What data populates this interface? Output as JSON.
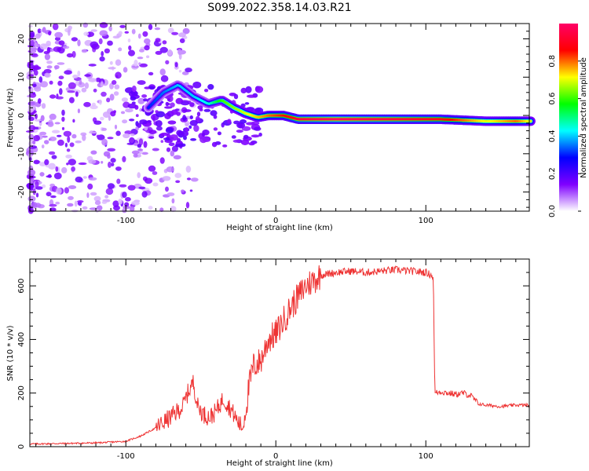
{
  "figure": {
    "title": "S099.2022.358.14.03.R21"
  },
  "chart_data": [
    {
      "type": "heatmap",
      "name": "spectrogram",
      "xlabel": "Height of straight line (km)",
      "ylabel": "Frequency (Hz)",
      "xlim": [
        -164,
        169
      ],
      "ylim": [
        -25,
        24
      ],
      "x_ticks": [
        -100,
        0,
        100
      ],
      "y_ticks": [
        -20,
        -10,
        0,
        10,
        20
      ],
      "grid": false,
      "ridge": {
        "x": [
          -85,
          -75,
          -65,
          -55,
          -45,
          -36,
          -28,
          -20,
          -12,
          -5,
          5,
          15,
          40,
          80,
          110,
          140,
          160,
          169
        ],
        "y": [
          2,
          6,
          8,
          5,
          3,
          4,
          2,
          0.5,
          -0.5,
          0,
          0,
          -1,
          -1,
          -1,
          -1,
          -1.5,
          -1.5,
          -1.5
        ],
        "amplitude": [
          0.3,
          0.35,
          0.4,
          0.4,
          0.45,
          0.6,
          0.65,
          0.7,
          0.75,
          0.8,
          0.85,
          0.95,
          1.0,
          0.95,
          0.9,
          0.7,
          0.8,
          0.7
        ]
      },
      "colorbar": {
        "label": "Normalized spectral amplitude",
        "range": [
          0,
          1
        ],
        "ticks": [
          0.0,
          0.2,
          0.4,
          0.6,
          0.8
        ],
        "tick_labels": [
          "0.0",
          "0.2",
          "0.4",
          "0.6",
          "0.8"
        ],
        "colors": [
          "#ffffff",
          "#7f00ff",
          "#0000ff",
          "#00ffff",
          "#00ff00",
          "#ffff00",
          "#ff0000",
          "#ff0066"
        ]
      }
    },
    {
      "type": "line",
      "name": "snr",
      "xlabel": "Height of straight line (km)",
      "ylabel": "SNR (10 * v/v)",
      "xlim": [
        -164,
        169
      ],
      "ylim": [
        0,
        700
      ],
      "x_ticks": [
        -100,
        0,
        100
      ],
      "y_ticks": [
        0,
        200,
        400,
        600
      ],
      "grid": false,
      "color": "#ee3333",
      "series": [
        {
          "x": [
            -164,
            -140,
            -120,
            -100,
            -90,
            -80,
            -70,
            -62,
            -58,
            -55,
            -52,
            -48,
            -44,
            -40,
            -35,
            -30,
            -25,
            -22,
            -20,
            -18,
            -15,
            -10,
            -5,
            0,
            5,
            10,
            15,
            20,
            25,
            30,
            40,
            50,
            60,
            70,
            80,
            90,
            100,
            104,
            105,
            106,
            110,
            115,
            120,
            125,
            130,
            135,
            140,
            150,
            160,
            169
          ],
          "y": [
            10,
            12,
            14,
            20,
            40,
            70,
            110,
            150,
            210,
            240,
            150,
            120,
            110,
            130,
            180,
            140,
            90,
            70,
            140,
            220,
            300,
            320,
            400,
            420,
            470,
            520,
            560,
            600,
            620,
            640,
            650,
            655,
            650,
            655,
            660,
            655,
            650,
            640,
            630,
            200,
            205,
            200,
            195,
            200,
            190,
            160,
            155,
            150,
            155,
            155
          ]
        }
      ]
    }
  ]
}
